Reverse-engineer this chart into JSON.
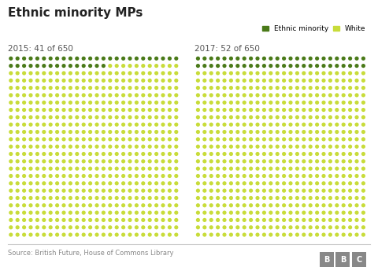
{
  "title": "Ethnic minority MPs",
  "subtitle_2015": "2015: 41 of 650",
  "subtitle_2017": "2017: 52 of 650",
  "total": 650,
  "minority_2015": 41,
  "minority_2017": 52,
  "cols": 26,
  "rows": 25,
  "color_minority": "#4a7a19",
  "color_white": "#c8dc3a",
  "legend_minority_label": "Ethnic minority",
  "legend_white_label": "White",
  "source_text": "Source: British Future, House of Commons Library",
  "background_color": "#ffffff",
  "dot_size": 14
}
